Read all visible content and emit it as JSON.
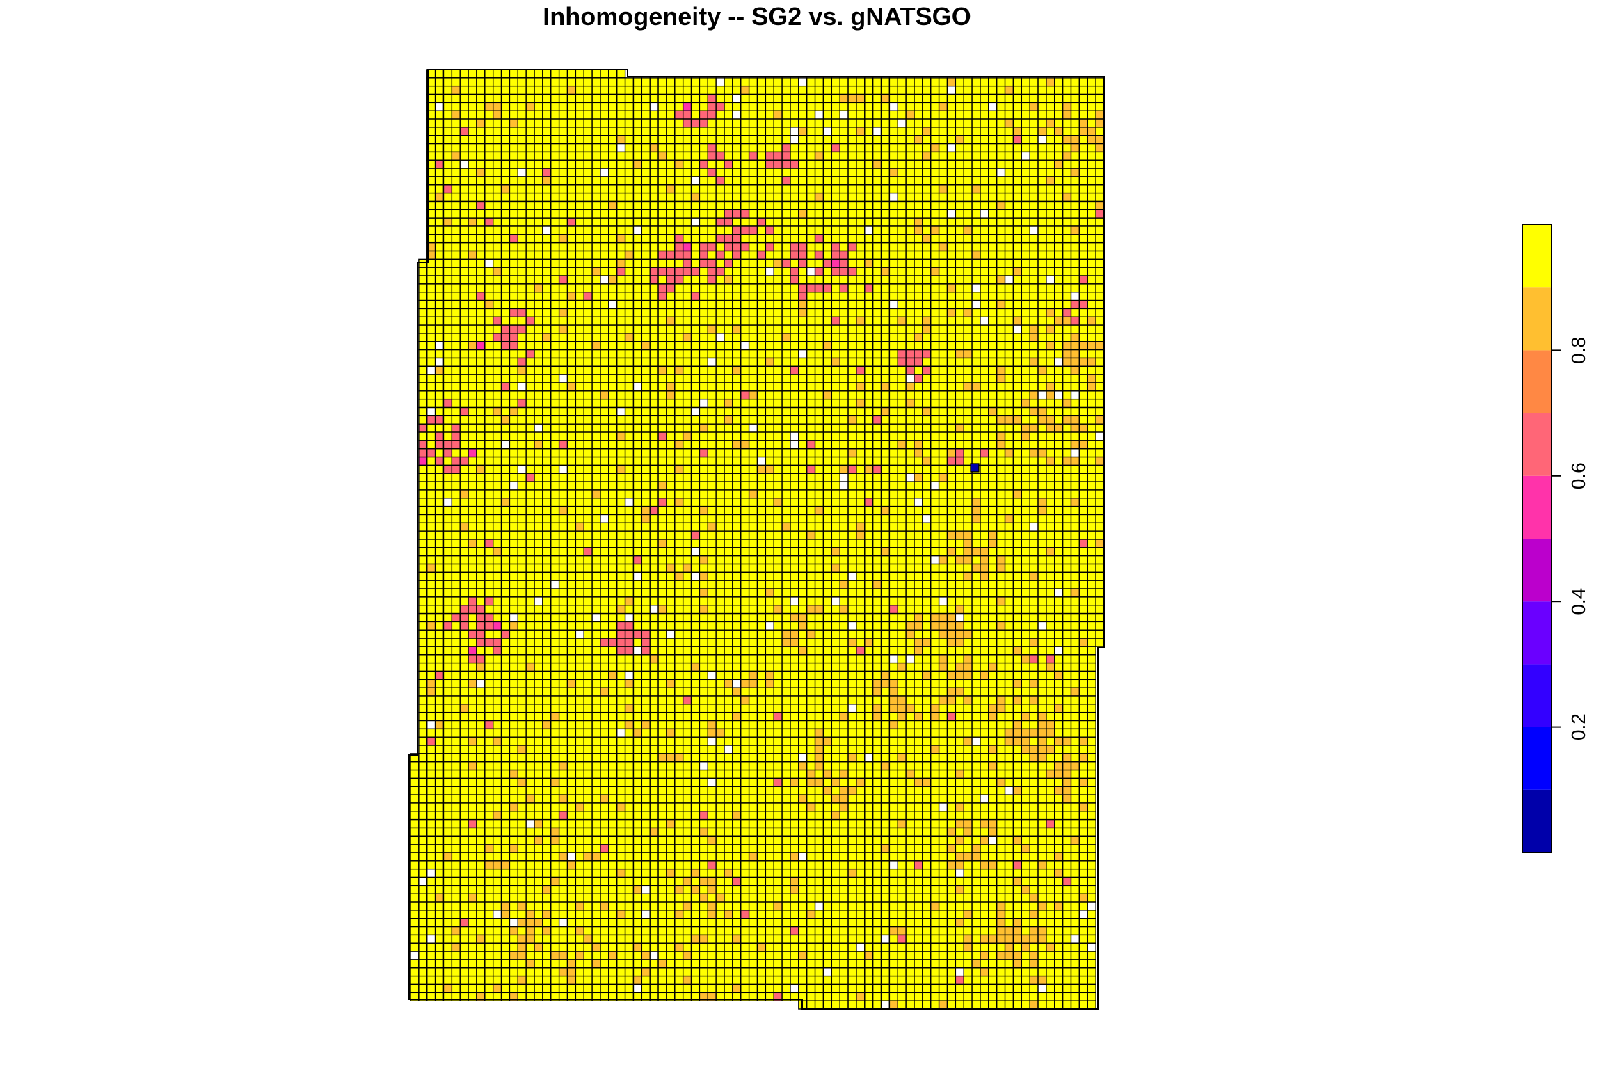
{
  "chart_data": {
    "type": "heatmap",
    "title": "Inhomogeneity -- SG2 vs. gNATSGO",
    "legend": {
      "position": "right",
      "ticks": [
        0.2,
        0.4,
        0.6,
        0.8
      ],
      "tick_labels": [
        "0.2",
        "0.4",
        "0.6",
        "0.8"
      ],
      "range": [
        0,
        1
      ],
      "colors": [
        "#0000AA",
        "#0000FF",
        "#3300FF",
        "#6A00FF",
        "#BB00CC",
        "#FF33AA",
        "#FF6677",
        "#FF8844",
        "#FFBF30",
        "#FFFF00"
      ]
    },
    "palette": {
      "high": "#FFFF00",
      "mid_high": "#FFBF30",
      "medium": "#FF6677",
      "low_mid": "#FF33AA",
      "low": "#0000AA",
      "grid_line": "#000000",
      "no_data": "#FFFFFF"
    },
    "grid": {
      "on": true,
      "columns": 84,
      "rows": 114
    },
    "value_distribution": {
      "high": 0.8,
      "mid_high": 0.1,
      "medium": 0.06,
      "low_mid": 0.02,
      "no_data": 0.02
    }
  }
}
